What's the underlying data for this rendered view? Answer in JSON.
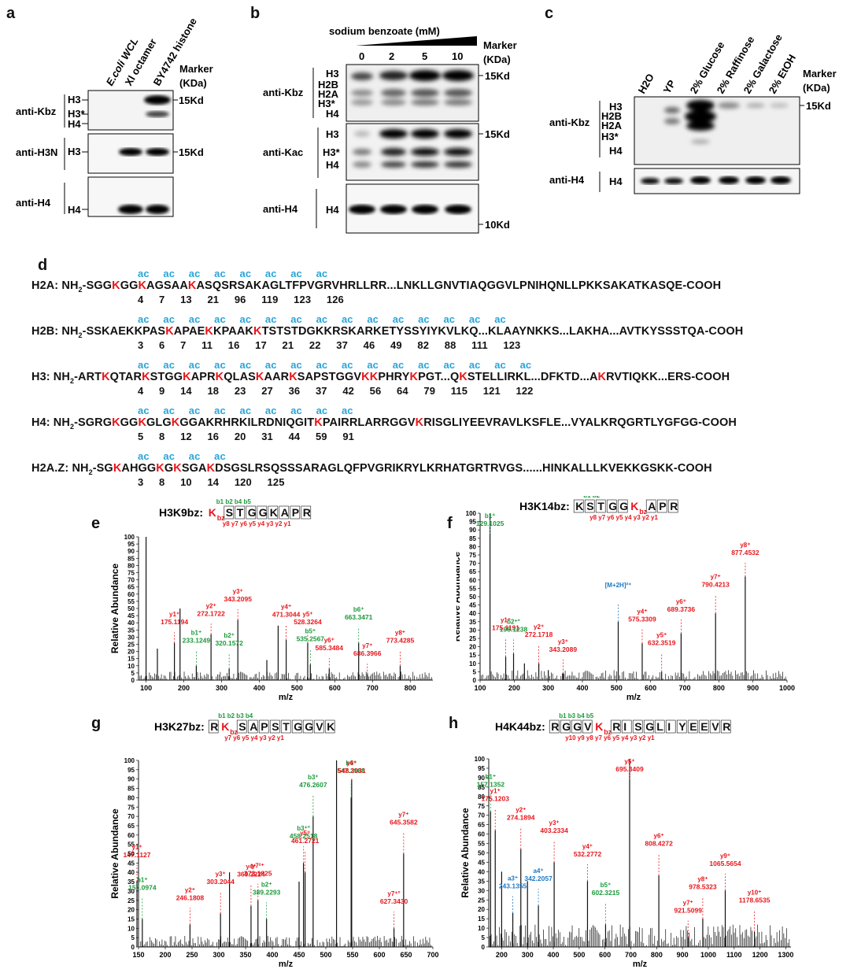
{
  "panels": {
    "a": "a",
    "b": "b",
    "c": "c",
    "d": "d",
    "e": "e",
    "f": "f",
    "g": "g",
    "h": "h"
  },
  "blot_a": {
    "columns": [
      "E.coli WCL",
      "Xl octamer",
      "BY4742 histone"
    ],
    "marker_header": [
      "Marker",
      "(KDa)"
    ],
    "rows": [
      {
        "antibody": "anti-Kbz",
        "bands": [
          "H3",
          "H3*",
          "H4"
        ],
        "marker": "15Kd"
      },
      {
        "antibody": "anti-H3N",
        "bands": [
          "H3"
        ],
        "marker": "15Kd"
      },
      {
        "antibody": "anti-H4",
        "bands": [
          "H4"
        ],
        "marker": ""
      }
    ]
  },
  "blot_b": {
    "treatment": "sodium benzoate (mM)",
    "concentrations": [
      "0",
      "2",
      "5",
      "10"
    ],
    "marker_header": [
      "Marker",
      "(KDa)"
    ],
    "rows": [
      {
        "antibody": "anti-Kbz",
        "bands": [
          "H3",
          "H2B",
          "H2A",
          "H3*",
          "H4"
        ],
        "marker": "15Kd"
      },
      {
        "antibody": "anti-Kac",
        "bands": [
          "H3",
          "H3*",
          "H4"
        ],
        "marker": "15Kd"
      },
      {
        "antibody": "anti-H4",
        "bands": [
          "H4"
        ],
        "marker": "10Kd"
      }
    ]
  },
  "blot_c": {
    "columns": [
      "H2O",
      "YP",
      "2% Glucose",
      "2% Raffinose",
      "2% Galactose",
      "2% EtOH"
    ],
    "marker_header": [
      "Marker",
      "(KDa)"
    ],
    "rows": [
      {
        "antibody": "anti-Kbz",
        "bands": [
          "H3",
          "H2B",
          "H2A",
          "H3*",
          "H4"
        ],
        "marker": "15Kd"
      },
      {
        "antibody": "anti-H4",
        "bands": [
          "H4"
        ],
        "marker": ""
      }
    ]
  },
  "sequences": [
    {
      "name": "H2A",
      "prefix": "NH",
      "suffix": "-COOH",
      "segments": [
        "-SGG",
        "K",
        "GG",
        "K",
        "AGSAA",
        "K",
        "ASQSRSAKAGLTFPVGRVHRLLRR...LNKLLGNVTIAQGGVLPNIHQNLLPKKSAKATKASQE"
      ],
      "ac": [
        "ac",
        "ac",
        "ac",
        "ac",
        "ac",
        "ac",
        "ac",
        "ac"
      ],
      "numbers": [
        "4",
        "7",
        "13",
        "21",
        "96",
        "119",
        "123",
        "126"
      ]
    },
    {
      "name": "H2B",
      "prefix": "NH",
      "suffix": "-COOH",
      "segments": [
        "-SSKAEKKPAS",
        "K",
        "APAE",
        "K",
        "KPAAK",
        "K",
        "TSTSTDGKKRSKARKETYSSYIYKVLKQ...KLAAYNKKS...LAKHA...AVTKYSSSTQA"
      ],
      "ac": [
        "ac",
        "ac",
        "ac",
        "ac",
        "ac",
        "ac",
        "ac",
        "ac",
        "ac",
        "ac",
        "ac",
        "ac",
        "ac",
        "ac",
        "ac"
      ],
      "numbers": [
        "3",
        "6",
        "7",
        "11",
        "16",
        "17",
        "21",
        "22",
        "37",
        "46",
        "49",
        "82",
        "88",
        "111",
        "123"
      ]
    },
    {
      "name": "H3",
      "prefix": "NH",
      "suffix": "-COOH",
      "segments": [
        "-ART",
        "K",
        "QTAR",
        "K",
        "STGG",
        "K",
        "APR",
        "K",
        "QLAS",
        "K",
        "AAR",
        "K",
        "SAPSTGGV",
        "KK",
        "PHRY",
        "K",
        "PGT...Q",
        "K",
        "STELLIRKL...DFKTD...A",
        "K",
        "RVTIQKK...ERS"
      ],
      "ac": [
        "ac",
        "ac",
        "ac",
        "ac",
        "ac",
        "ac",
        "ac",
        "ac",
        "ac",
        "ac",
        "ac",
        "ac",
        "ac",
        "ac",
        "ac",
        "ac"
      ],
      "numbers": [
        "4",
        "9",
        "14",
        "18",
        "23",
        "27",
        "36",
        "37",
        "42",
        "56",
        "64",
        "79",
        "115",
        "121",
        "122"
      ]
    },
    {
      "name": "H4",
      "prefix": "NH",
      "suffix": "-COOH",
      "segments": [
        "-SGRG",
        "K",
        "GG",
        "K",
        "GLG",
        "K",
        "GGAKRHRKILRDNIQGIT",
        "K",
        "PAIRRLARRGGV",
        "K",
        "RISGLIYEEVRAVLKSFLE...VYALKRQGRTLYGFGG"
      ],
      "ac": [
        "ac",
        "ac",
        "ac",
        "ac",
        "ac",
        "ac",
        "ac",
        "ac",
        "ac"
      ],
      "numbers": [
        "5",
        "8",
        "12",
        "16",
        "20",
        "31",
        "44",
        "59",
        "91"
      ]
    },
    {
      "name": "H2A.Z",
      "prefix": "NH",
      "suffix": "-COOH",
      "segments": [
        "-SG",
        "K",
        "AHGG",
        "K",
        "G",
        "K",
        "SGA",
        "K",
        "DSGSLRSQSSSARAGLQFPVGRIKRYLKRHATGRTRVGS......HINKALLLKVEKKGSKK"
      ],
      "ac": [
        "ac",
        "ac",
        "ac",
        "ac"
      ],
      "numbers": [
        "3",
        "8",
        "10",
        "14",
        "120",
        "125"
      ]
    }
  ],
  "spectra": [
    {
      "id": "e",
      "title": "H3K9bz:",
      "residues": [
        "K",
        "S",
        "T",
        "G",
        "G",
        "K",
        "A",
        "P",
        "R"
      ],
      "mod": "bz",
      "b_labels": [
        "b1",
        "b2",
        "b4",
        "b5"
      ],
      "y_labels": [
        "y8",
        "y7",
        "y6",
        "y5",
        "y4",
        "y3",
        "y2",
        "y1"
      ],
      "xlabel": "m/z",
      "ylabel": "Relative Abundance",
      "xlim": [
        80,
        860
      ],
      "ylim": [
        0,
        100
      ],
      "xticks": [
        "100",
        "200",
        "300",
        "400",
        "500",
        "600",
        "700",
        "800"
      ],
      "peaks": [
        [
          100,
          100
        ],
        [
          130,
          22
        ],
        [
          175.1194,
          26
        ],
        [
          190,
          50
        ],
        [
          233.1249,
          10
        ],
        [
          272.1722,
          32
        ],
        [
          320.1572,
          8
        ],
        [
          343.2095,
          42
        ],
        [
          420,
          14
        ],
        [
          450,
          38
        ],
        [
          471.3044,
          28
        ],
        [
          528.3264,
          26
        ],
        [
          535.2567,
          11
        ],
        [
          585.3484,
          8
        ],
        [
          663.3471,
          26
        ],
        [
          686.3966,
          4
        ],
        [
          773.4285,
          10
        ]
      ],
      "labels": [
        {
          "ion": "y1⁺",
          "mz": "175.1194",
          "x": 175.1,
          "c": "red"
        },
        {
          "ion": "b1⁺",
          "mz": "233.1249",
          "x": 233.1,
          "c": "green"
        },
        {
          "ion": "y2⁺",
          "mz": "272.1722",
          "x": 272.2,
          "c": "red"
        },
        {
          "ion": "b2⁺",
          "mz": "320.1572",
          "x": 320.2,
          "c": "green"
        },
        {
          "ion": "y3⁺",
          "mz": "343.2095",
          "x": 343.2,
          "c": "red"
        },
        {
          "ion": "y4⁺",
          "mz": "471.3044",
          "x": 471.3,
          "c": "red"
        },
        {
          "ion": "y5⁺",
          "mz": "528.3264",
          "x": 528.3,
          "c": "red"
        },
        {
          "ion": "b5⁺",
          "mz": "535.2567",
          "x": 535.3,
          "c": "green"
        },
        {
          "ion": "y6⁺",
          "mz": "585.3484",
          "x": 585.3,
          "c": "red"
        },
        {
          "ion": "b6⁺",
          "mz": "663.3471",
          "x": 663.3,
          "c": "green"
        },
        {
          "ion": "y7⁺",
          "mz": "686.3966",
          "x": 686.4,
          "c": "red"
        },
        {
          "ion": "y8⁺",
          "mz": "773.4285",
          "x": 773.4,
          "c": "red"
        }
      ]
    },
    {
      "id": "f",
      "title": "H3K14bz:",
      "residues": [
        "K",
        "S",
        "T",
        "G",
        "G",
        "K",
        "A",
        "P",
        "R"
      ],
      "mod": "bz",
      "b_labels": [
        "b1",
        "b2"
      ],
      "y_labels": [
        "y8",
        "y7",
        "y6",
        "y5",
        "y4",
        "y3",
        "y2",
        "y1"
      ],
      "xlabel": "m/z",
      "ylabel": "Relative Abundance",
      "xlim": [
        100,
        1000
      ],
      "ylim": [
        0,
        100
      ],
      "xticks": [
        "100",
        "200",
        "300",
        "400",
        "500",
        "600",
        "700",
        "800",
        "900",
        "1000"
      ],
      "peaks": [
        [
          129.1025,
          100
        ],
        [
          175.1191,
          14
        ],
        [
          198.1238,
          16
        ],
        [
          230,
          10
        ],
        [
          272.1718,
          10
        ],
        [
          300,
          6
        ],
        [
          343.2089,
          4
        ],
        [
          505,
          35
        ],
        [
          575.3309,
          22
        ],
        [
          632.3519,
          5
        ],
        [
          689.3736,
          28
        ],
        [
          790.4213,
          40
        ],
        [
          877.4532,
          62
        ]
      ],
      "labels": [
        {
          "ion": "b1⁺",
          "mz": "129.1025",
          "x": 129.1,
          "c": "green"
        },
        {
          "ion": "y1⁺",
          "mz": "175.1191",
          "x": 175.1,
          "c": "red"
        },
        {
          "ion": "b2⁺°",
          "mz": "198.1238",
          "x": 198.1,
          "c": "green"
        },
        {
          "ion": "y2⁺",
          "mz": "272.1718",
          "x": 272.2,
          "c": "red"
        },
        {
          "ion": "y3⁺",
          "mz": "343.2089",
          "x": 343.2,
          "c": "red"
        },
        {
          "ion": "[M+2H]²⁺",
          "mz": "",
          "x": 505,
          "c": "blue"
        },
        {
          "ion": "y4⁺",
          "mz": "575.3309",
          "x": 575.3,
          "c": "red"
        },
        {
          "ion": "y5⁺",
          "mz": "632.3519",
          "x": 632.4,
          "c": "red"
        },
        {
          "ion": "y6⁺",
          "mz": "689.3736",
          "x": 689.4,
          "c": "red"
        },
        {
          "ion": "y7⁺",
          "mz": "790.4213",
          "x": 790.4,
          "c": "red"
        },
        {
          "ion": "y8⁺",
          "mz": "877.4532",
          "x": 877.5,
          "c": "red"
        }
      ]
    },
    {
      "id": "g",
      "title": "H3K27bz:",
      "residues": [
        "R",
        "K",
        "S",
        "A",
        "P",
        "S",
        "T",
        "G",
        "G",
        "V",
        "K"
      ],
      "mod": "bz",
      "b_labels": [
        "b1",
        "b2",
        "b3",
        "b4"
      ],
      "y_labels": [
        "y7",
        "y6",
        "y5",
        "y4",
        "y3",
        "y2",
        "y1"
      ],
      "xlabel": "m/z",
      "ylabel": "Relative Abundance",
      "xlim": [
        150,
        700
      ],
      "ylim": [
        0,
        100
      ],
      "xticks": [
        "150",
        "200",
        "250",
        "300",
        "350",
        "400",
        "450",
        "500",
        "550",
        "600",
        "650",
        "700"
      ],
      "peaks": [
        [
          147.1127,
          35
        ],
        [
          157.0974,
          15
        ],
        [
          246.1808,
          12
        ],
        [
          303.2044,
          18
        ],
        [
          320,
          40
        ],
        [
          360.2224,
          22
        ],
        [
          373.1825,
          25
        ],
        [
          389.2293,
          15
        ],
        [
          450,
          35
        ],
        [
          458.2518,
          45
        ],
        [
          461.2721,
          40
        ],
        [
          476.2607,
          70
        ],
        [
          520,
          100
        ],
        [
          547.2988,
          80
        ],
        [
          548.3031,
          90
        ],
        [
          627.343,
          10
        ],
        [
          645.3582,
          50
        ]
      ],
      "labels": [
        {
          "ion": "y1⁺",
          "mz": "147.1127",
          "x": 147.1,
          "c": "red"
        },
        {
          "ion": "b1⁺",
          "mz": "157.0974",
          "x": 157.1,
          "c": "green"
        },
        {
          "ion": "y2⁺",
          "mz": "246.1808",
          "x": 246.2,
          "c": "red"
        },
        {
          "ion": "y3⁺",
          "mz": "303.2044",
          "x": 303.2,
          "c": "red"
        },
        {
          "ion": "y7²⁺",
          "mz": "373.1825",
          "x": 373.2,
          "c": "red"
        },
        {
          "ion": "y4⁺",
          "mz": "360.2224",
          "x": 360.2,
          "c": "red"
        },
        {
          "ion": "b2⁺",
          "mz": "389.2293",
          "x": 389.2,
          "c": "green"
        },
        {
          "ion": "y5⁺",
          "mz": "461.2721",
          "x": 461.3,
          "c": "red"
        },
        {
          "ion": "b3⁺°",
          "mz": "458.2518",
          "x": 458.3,
          "c": "green"
        },
        {
          "ion": "b3⁺",
          "mz": "476.2607",
          "x": 476.3,
          "c": "green"
        },
        {
          "ion": "b4⁺",
          "mz": "547.2988",
          "x": 547.3,
          "c": "green"
        },
        {
          "ion": "y6⁺",
          "mz": "548.3031",
          "x": 548.3,
          "c": "red"
        },
        {
          "ion": "y7⁺°",
          "mz": "627.3430",
          "x": 627.3,
          "c": "red"
        },
        {
          "ion": "y7⁺",
          "mz": "645.3582",
          "x": 645.4,
          "c": "red"
        }
      ]
    },
    {
      "id": "h",
      "title": "H4K44bz:",
      "residues": [
        "R",
        "G",
        "G",
        "V",
        "K",
        "R",
        "I",
        "S",
        "G",
        "L",
        "I",
        "Y",
        "E",
        "E",
        "V",
        "R"
      ],
      "mod": "bz",
      "b_labels": [
        "b1",
        "b3",
        "b4",
        "b5"
      ],
      "y_labels": [
        "y10",
        "y9",
        "y8",
        "y7",
        "y6",
        "y5",
        "y4",
        "y3",
        "y2",
        "y1"
      ],
      "xlabel": "m/z",
      "ylabel": "Relative Abundance",
      "xlim": [
        150,
        1320
      ],
      "ylim": [
        0,
        100
      ],
      "xticks": [
        "200",
        "300",
        "400",
        "500",
        "600",
        "700",
        "800",
        "900",
        "1000",
        "1100",
        "1200",
        "1300"
      ],
      "peaks": [
        [
          157.1352,
          72
        ],
        [
          175.1203,
          62
        ],
        [
          200,
          40
        ],
        [
          243.1355,
          18
        ],
        [
          274.1894,
          52
        ],
        [
          300,
          35
        ],
        [
          342.2057,
          22
        ],
        [
          403.2334,
          45
        ],
        [
          532.2772,
          35
        ],
        [
          602.3215,
          12
        ],
        [
          695.3409,
          100
        ],
        [
          808.4272,
          38
        ],
        [
          921.5099,
          5
        ],
        [
          978.5323,
          15
        ],
        [
          1065.5654,
          30
        ],
        [
          1178.6535,
          8
        ]
      ],
      "labels": [
        {
          "ion": "b1⁺",
          "mz": "157.1352",
          "x": 157.1,
          "c": "green"
        },
        {
          "ion": "y1⁺",
          "mz": "175.1203",
          "x": 175.1,
          "c": "red"
        },
        {
          "ion": "a3⁺",
          "mz": "243.1355",
          "x": 243.1,
          "c": "blue"
        },
        {
          "ion": "y2⁺",
          "mz": "274.1894",
          "x": 274.2,
          "c": "red"
        },
        {
          "ion": "a4⁺",
          "mz": "342.2057",
          "x": 342.2,
          "c": "blue"
        },
        {
          "ion": "y3⁺",
          "mz": "403.2334",
          "x": 403.2,
          "c": "red"
        },
        {
          "ion": "y4⁺",
          "mz": "532.2772",
          "x": 532.3,
          "c": "red"
        },
        {
          "ion": "b5⁺",
          "mz": "602.3215",
          "x": 602.3,
          "c": "green"
        },
        {
          "ion": "y5⁺",
          "mz": "695.3409",
          "x": 695.3,
          "c": "red"
        },
        {
          "ion": "y6⁺",
          "mz": "808.4272",
          "x": 808.4,
          "c": "red"
        },
        {
          "ion": "y7⁺",
          "mz": "921.5099",
          "x": 921.5,
          "c": "red"
        },
        {
          "ion": "y8⁺",
          "mz": "978.5323",
          "x": 978.5,
          "c": "red"
        },
        {
          "ion": "y9⁺",
          "mz": "1065.5654",
          "x": 1065.6,
          "c": "red"
        },
        {
          "ion": "y10⁺",
          "mz": "1178.6535",
          "x": 1178.7,
          "c": "red"
        }
      ]
    }
  ],
  "colors": {
    "red": "#e8151b",
    "green": "#1a9a3a",
    "blue": "#1e78c2",
    "ac": "#2aa5d8",
    "text": "#231f20"
  }
}
